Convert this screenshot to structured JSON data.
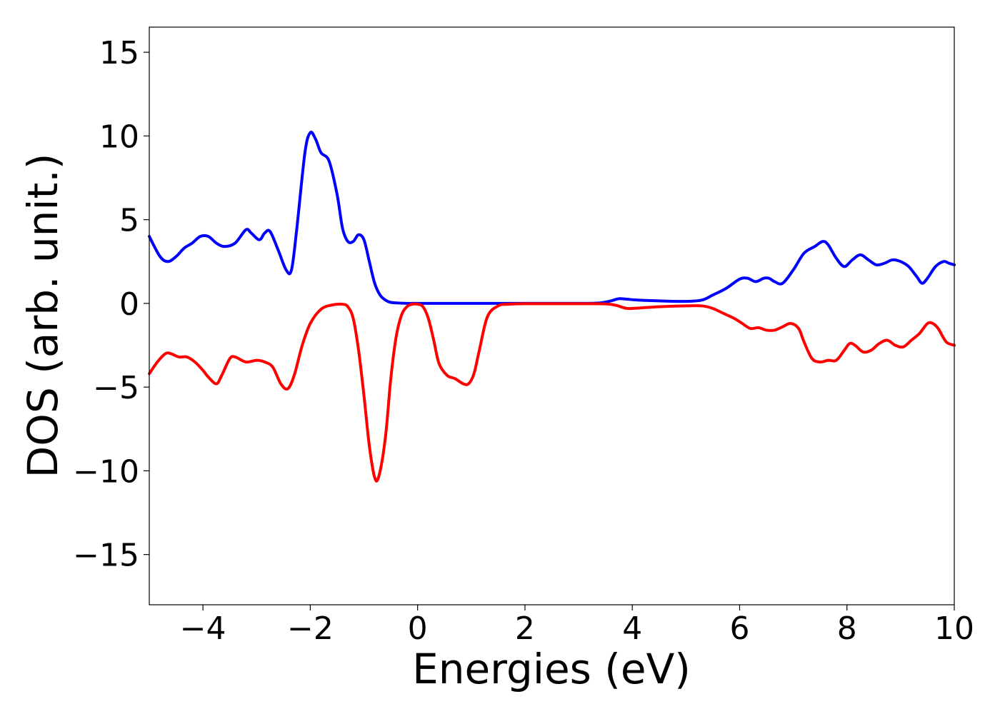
{
  "chart_data": {
    "type": "line",
    "title": "",
    "xlabel": "Energies (eV)",
    "ylabel": "DOS (arb. unit.)",
    "xlim": [
      -5,
      10
    ],
    "ylim": [
      -18,
      16.5
    ],
    "xticks": [
      -4,
      -2,
      0,
      2,
      4,
      6,
      8,
      10
    ],
    "xtick_labels": [
      "−4",
      "−2",
      "0",
      "2",
      "4",
      "6",
      "8",
      "10"
    ],
    "yticks": [
      -15,
      -10,
      -5,
      0,
      5,
      10,
      15
    ],
    "ytick_labels": [
      "−15",
      "−10",
      "−5",
      "0",
      "5",
      "10",
      "15"
    ],
    "grid": false,
    "legend": "none",
    "series": [
      {
        "color": "#0000ff",
        "x": [
          -5,
          -4.8,
          -4.65,
          -4.5,
          -4.35,
          -4.2,
          -4.05,
          -3.9,
          -3.75,
          -3.6,
          -3.4,
          -3.2,
          -3.1,
          -2.95,
          -2.85,
          -2.75,
          -2.6,
          -2.45,
          -2.35,
          -2.25,
          -2.1,
          -2.0,
          -1.9,
          -1.8,
          -1.65,
          -1.5,
          -1.4,
          -1.3,
          -1.2,
          -1.1,
          -1.0,
          -0.9,
          -0.8,
          -0.7,
          -0.6,
          -0.5,
          -0.35,
          -0.2,
          0,
          0.5,
          1,
          2,
          3,
          3.4,
          3.6,
          3.75,
          3.9,
          4.1,
          4.5,
          5.0,
          5.3,
          5.5,
          5.75,
          6.0,
          6.15,
          6.3,
          6.45,
          6.55,
          6.65,
          6.8,
          7.0,
          7.2,
          7.4,
          7.55,
          7.65,
          7.8,
          7.95,
          8.1,
          8.25,
          8.4,
          8.55,
          8.7,
          8.85,
          9.0,
          9.15,
          9.3,
          9.4,
          9.5,
          9.65,
          9.8,
          9.9,
          10
        ],
        "y": [
          4.0,
          2.8,
          2.5,
          2.8,
          3.3,
          3.6,
          4.0,
          4.0,
          3.6,
          3.4,
          3.6,
          4.4,
          4.2,
          3.8,
          4.2,
          4.3,
          3.2,
          2.0,
          2.0,
          4.5,
          9.0,
          10.2,
          9.8,
          9.0,
          8.5,
          6.5,
          4.5,
          3.7,
          3.7,
          4.1,
          3.8,
          2.5,
          1.2,
          0.5,
          0.2,
          0.06,
          0.02,
          0,
          0,
          0,
          0,
          0,
          0,
          0.03,
          0.15,
          0.28,
          0.25,
          0.2,
          0.15,
          0.12,
          0.2,
          0.5,
          0.9,
          1.45,
          1.5,
          1.3,
          1.5,
          1.5,
          1.3,
          1.2,
          2.0,
          3.0,
          3.4,
          3.7,
          3.5,
          2.7,
          2.2,
          2.6,
          2.9,
          2.6,
          2.3,
          2.4,
          2.6,
          2.5,
          2.2,
          1.6,
          1.2,
          1.5,
          2.2,
          2.5,
          2.4,
          2.3
        ]
      },
      {
        "color": "#ff0000",
        "x": [
          -5,
          -4.85,
          -4.7,
          -4.6,
          -4.45,
          -4.3,
          -4.15,
          -4.0,
          -3.9,
          -3.75,
          -3.65,
          -3.5,
          -3.4,
          -3.2,
          -3.0,
          -2.85,
          -2.7,
          -2.55,
          -2.42,
          -2.3,
          -2.15,
          -2.0,
          -1.8,
          -1.6,
          -1.4,
          -1.3,
          -1.2,
          -1.1,
          -1.0,
          -0.9,
          -0.8,
          -0.72,
          -0.6,
          -0.5,
          -0.4,
          -0.3,
          -0.2,
          -0.1,
          0,
          0.1,
          0.2,
          0.3,
          0.4,
          0.55,
          0.7,
          0.85,
          0.95,
          1.05,
          1.15,
          1.3,
          1.5,
          1.7,
          2,
          3,
          3.5,
          3.7,
          3.9,
          4.1,
          4.5,
          5.0,
          5.3,
          5.5,
          5.7,
          5.9,
          6.05,
          6.2,
          6.35,
          6.5,
          6.65,
          6.8,
          6.95,
          7.1,
          7.2,
          7.35,
          7.5,
          7.65,
          7.8,
          7.95,
          8.05,
          8.15,
          8.3,
          8.45,
          8.6,
          8.75,
          8.9,
          9.05,
          9.2,
          9.35,
          9.5,
          9.6,
          9.7,
          9.85,
          10
        ],
        "y": [
          -4.2,
          -3.5,
          -3.0,
          -3.0,
          -3.2,
          -3.2,
          -3.5,
          -4.0,
          -4.4,
          -4.8,
          -4.3,
          -3.3,
          -3.2,
          -3.5,
          -3.4,
          -3.5,
          -3.8,
          -4.8,
          -5.1,
          -4.3,
          -2.5,
          -1.2,
          -0.35,
          -0.1,
          -0.05,
          -0.2,
          -0.9,
          -2.8,
          -5.5,
          -8.5,
          -10.4,
          -10.3,
          -8.0,
          -4.5,
          -2.0,
          -0.7,
          -0.2,
          -0.05,
          -0.05,
          -0.2,
          -0.9,
          -2.2,
          -3.6,
          -4.3,
          -4.5,
          -4.8,
          -4.8,
          -4.2,
          -2.8,
          -0.8,
          -0.15,
          -0.05,
          -0.02,
          -0.02,
          -0.03,
          -0.12,
          -0.3,
          -0.28,
          -0.2,
          -0.15,
          -0.15,
          -0.3,
          -0.6,
          -0.9,
          -1.2,
          -1.5,
          -1.45,
          -1.6,
          -1.6,
          -1.4,
          -1.2,
          -1.5,
          -2.3,
          -3.3,
          -3.5,
          -3.4,
          -3.4,
          -2.8,
          -2.4,
          -2.5,
          -2.9,
          -2.8,
          -2.4,
          -2.2,
          -2.5,
          -2.6,
          -2.2,
          -1.8,
          -1.2,
          -1.2,
          -1.5,
          -2.3,
          -2.5
        ]
      }
    ]
  }
}
